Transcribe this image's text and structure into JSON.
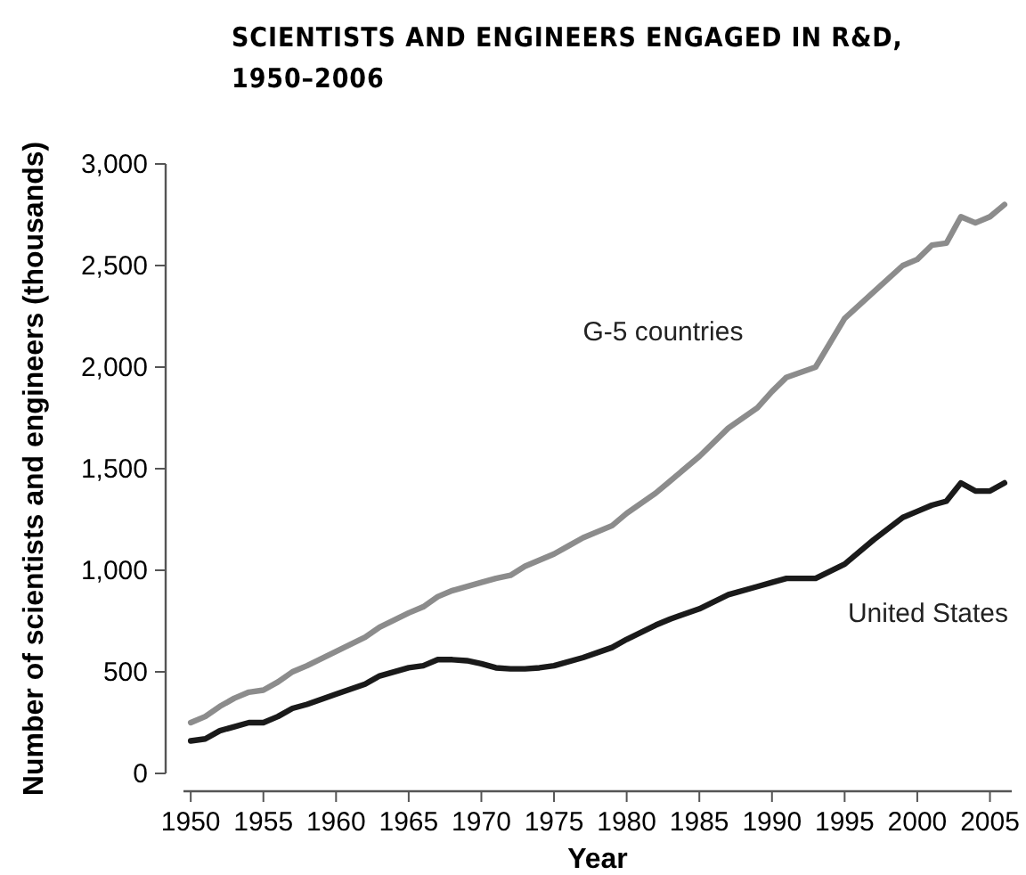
{
  "chart_data": {
    "type": "line",
    "title": "SCIENTISTS AND ENGINEERS ENGAGED IN R&D, 1950–2006",
    "xlabel": "Year",
    "ylabel": "Number of scientists and engineers (thousands)",
    "xlim": [
      1949.5,
      2006.5
    ],
    "xticks": [
      1950,
      1955,
      1960,
      1965,
      1970,
      1975,
      1980,
      1985,
      1990,
      1995,
      2000,
      {
        "value": 2005,
        "label": "2005"
      }
    ],
    "ylim": [
      0,
      3000
    ],
    "yticks": [
      {
        "value": 0,
        "label": "0"
      },
      {
        "value": 500,
        "label": "500"
      },
      {
        "value": 1000,
        "label": "1,000"
      },
      {
        "value": 1500,
        "label": "1,500"
      },
      {
        "value": 2000,
        "label": "2,000"
      },
      {
        "value": 2500,
        "label": "2,500"
      },
      {
        "value": 3000,
        "label": "3,000"
      }
    ],
    "grid": false,
    "series": [
      {
        "name": "G-5 countries",
        "color": "#8c8c8c",
        "x": [
          1950,
          1951,
          1952,
          1953,
          1954,
          1955,
          1956,
          1957,
          1958,
          1960,
          1962,
          1963,
          1965,
          1966,
          1967,
          1968,
          1970,
          1971,
          1972,
          1973,
          1975,
          1976,
          1977,
          1979,
          1980,
          1982,
          1983,
          1985,
          1987,
          1989,
          1990,
          1991,
          1993,
          1995,
          1997,
          1999,
          2000,
          2001,
          2002,
          2003,
          2004,
          2005,
          2006
        ],
        "values": [
          250,
          280,
          330,
          370,
          400,
          410,
          450,
          500,
          530,
          600,
          670,
          720,
          790,
          820,
          870,
          900,
          940,
          960,
          975,
          1020,
          1080,
          1120,
          1160,
          1220,
          1280,
          1380,
          1440,
          1560,
          1700,
          1800,
          1880,
          1950,
          2000,
          2240,
          2370,
          2500,
          2530,
          2600,
          2610,
          2740,
          2710,
          2740,
          2800
        ]
      },
      {
        "name": "United States",
        "color": "#1a1a1a",
        "x": [
          1950,
          1951,
          1952,
          1953,
          1954,
          1955,
          1956,
          1957,
          1958,
          1960,
          1962,
          1963,
          1965,
          1966,
          1967,
          1968,
          1969,
          1970,
          1971,
          1972,
          1973,
          1974,
          1975,
          1977,
          1979,
          1980,
          1982,
          1983,
          1985,
          1987,
          1989,
          1990,
          1991,
          1993,
          1995,
          1997,
          1999,
          2000,
          2001,
          2002,
          2003,
          2004,
          2005,
          2006
        ],
        "values": [
          160,
          170,
          210,
          230,
          250,
          250,
          280,
          320,
          340,
          390,
          440,
          480,
          520,
          530,
          560,
          560,
          555,
          540,
          520,
          515,
          515,
          520,
          530,
          570,
          620,
          660,
          730,
          760,
          810,
          880,
          920,
          940,
          960,
          960,
          1030,
          1150,
          1260,
          1290,
          1320,
          1340,
          1430,
          1390,
          1390,
          1430
        ]
      }
    ]
  }
}
